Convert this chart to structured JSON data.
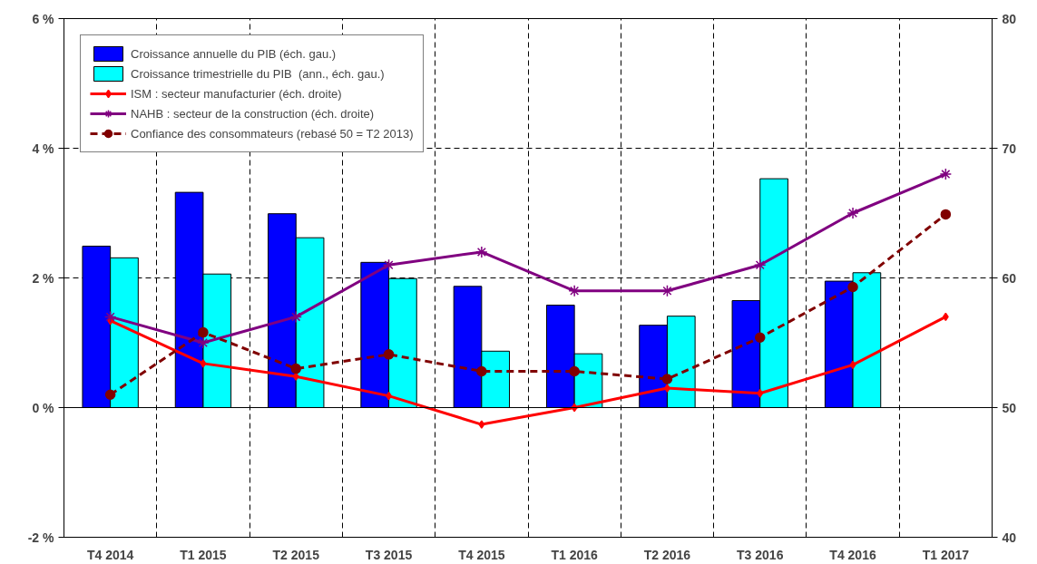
{
  "chart_data": {
    "type": "bar",
    "categories": [
      "T4 2014",
      "T1 2015",
      "T2 2015",
      "T3 2015",
      "T4 2015",
      "T1 2016",
      "T2 2016",
      "T3 2016",
      "T4 2016",
      "T1 2017"
    ],
    "series": [
      {
        "name": "Croissance annuelle du PIB (éch. gau.)",
        "color": "#0000ff",
        "values": [
          2.49,
          3.32,
          2.99,
          2.24,
          1.87,
          1.58,
          1.27,
          1.65,
          1.95,
          null
        ]
      },
      {
        "name": "Croissance trimestrielle du PIB  (ann., éch. gau.)",
        "color": "#00ffff",
        "values": [
          2.31,
          2.06,
          2.62,
          1.99,
          0.87,
          0.83,
          1.41,
          3.53,
          2.08,
          null
        ]
      },
      {
        "name": "ISM : secteur manufacturier (éch. droite)",
        "type": "line",
        "axis": "y2",
        "color": "#ff0000",
        "marker": "diamond",
        "line_style": "solid",
        "values": [
          56.7,
          53.4,
          52.4,
          50.9,
          48.7,
          50.0,
          51.5,
          51.1,
          53.3,
          57.0
        ]
      },
      {
        "name": "NAHB : secteur de la construction (éch. droite)",
        "type": "line",
        "axis": "y2",
        "color": "#800080",
        "marker": "cross",
        "line_style": "solid",
        "values": [
          57,
          55,
          57,
          61,
          62,
          59,
          59,
          61,
          65,
          68
        ]
      },
      {
        "name": "Confiance des consommateurs (rebasé 50 = T2 2013)",
        "type": "line",
        "axis": "y2",
        "color": "#800000",
        "marker": "circle",
        "line_style": "dashed",
        "values": [
          51.0,
          55.8,
          53.0,
          54.1,
          52.8,
          52.8,
          52.2,
          55.4,
          59.3,
          64.9
        ]
      }
    ],
    "ylim": [
      -2,
      6
    ],
    "yticks": [
      {
        "value": -2,
        "label": "-2 %"
      },
      {
        "value": 0,
        "label": "0 %"
      },
      {
        "value": 2,
        "label": "2 %"
      },
      {
        "value": 4,
        "label": "4 %"
      },
      {
        "value": 6,
        "label": "6 %"
      }
    ],
    "y2lim": [
      40,
      80
    ],
    "y2ticks": [
      40,
      50,
      60,
      70,
      80
    ],
    "grid": true,
    "legend": "top left"
  }
}
